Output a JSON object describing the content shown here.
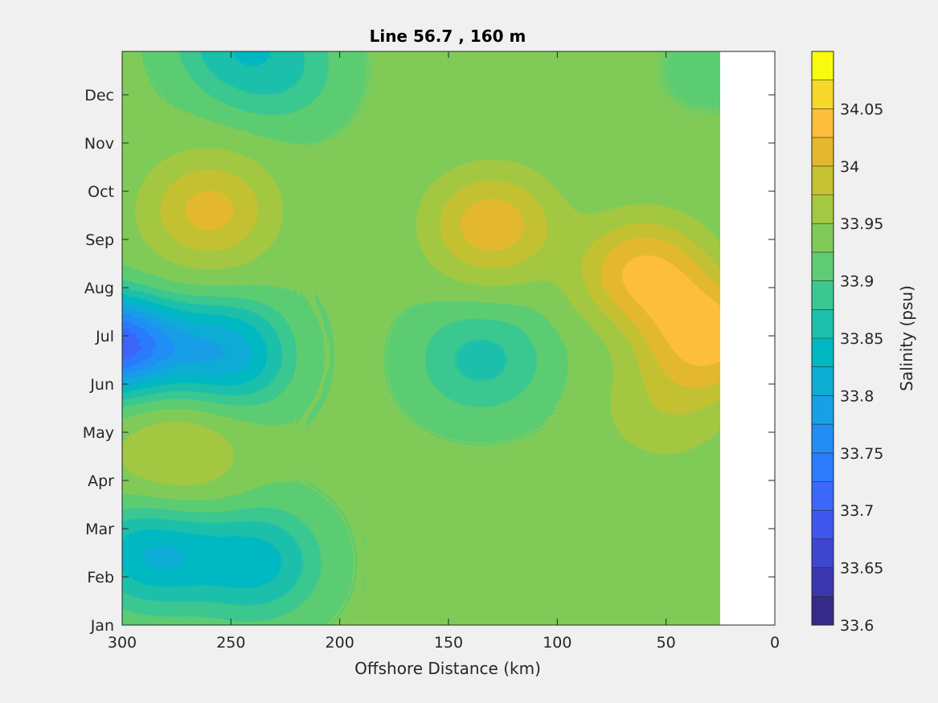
{
  "chart_data": {
    "type": "contourf",
    "title": "Line 56.7 , 160 m",
    "xlabel": "Offshore Distance (km)",
    "ylabel": "",
    "xlim": [
      300,
      0
    ],
    "x_reversed": true,
    "x_ticks": [
      "300",
      "250",
      "200",
      "150",
      "100",
      "50",
      "0"
    ],
    "y_ticks": [
      "Jan",
      "Feb",
      "Mar",
      "Apr",
      "May",
      "Jun",
      "Jul",
      "Aug",
      "Sep",
      "Oct",
      "Nov",
      "Dec"
    ],
    "data_x_extent_km": [
      300,
      25
    ],
    "colorbar": {
      "label": "Salinity (psu)",
      "min": 33.6,
      "max": 34.1,
      "step": 0.025,
      "tick_labels": [
        "33.6",
        "33.65",
        "33.7",
        "33.75",
        "33.8",
        "33.85",
        "33.9",
        "33.95",
        "34",
        "34.05"
      ],
      "colormap": "parula"
    },
    "features": [
      {
        "x": 300,
        "month": 5.7,
        "salinity": 33.6
      },
      {
        "x": 255,
        "month": 5.6,
        "salinity": 33.76
      },
      {
        "x": 285,
        "month": 1.5,
        "salinity": 33.79
      },
      {
        "x": 240,
        "month": 1.3,
        "salinity": 33.81
      },
      {
        "x": 135,
        "month": 5.5,
        "salinity": 33.85
      },
      {
        "x": 260,
        "month": 8.6,
        "salinity": 34.03
      },
      {
        "x": 130,
        "month": 8.3,
        "salinity": 34.04
      },
      {
        "x": 60,
        "month": 7.3,
        "salinity": 34.06
      },
      {
        "x": 30,
        "month": 6.0,
        "salinity": 34.07
      },
      {
        "x": 50,
        "month": 4.5,
        "salinity": 33.98
      },
      {
        "x": 275,
        "month": 3.6,
        "salinity": 33.99
      },
      {
        "x": 230,
        "month": 11.5,
        "salinity": 33.86
      },
      {
        "x": 245,
        "month": 12.1,
        "salinity": 33.83
      },
      {
        "x": 30,
        "month": 11.5,
        "salinity": 33.92
      }
    ]
  }
}
